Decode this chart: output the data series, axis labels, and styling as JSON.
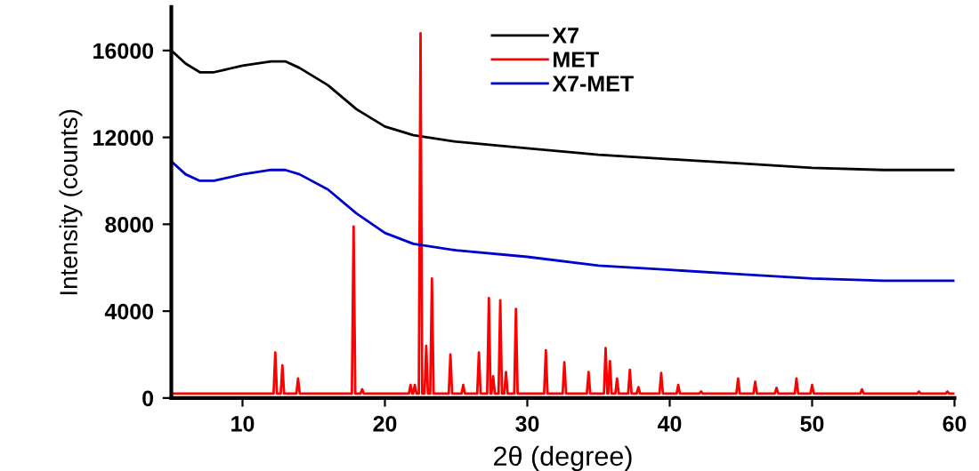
{
  "chart_data": {
    "type": "line",
    "xlabel": "2θ (degree)",
    "ylabel": "Intensity (counts)",
    "xlim": [
      5,
      60
    ],
    "ylim": [
      0,
      18000
    ],
    "xticks": [
      10,
      20,
      30,
      40,
      50,
      60
    ],
    "yticks": [
      0,
      4000,
      8000,
      12000,
      16000
    ],
    "grid": false,
    "legend": "top",
    "marker": "none",
    "line_style": "solid",
    "series": [
      {
        "name": "X7",
        "color": "#000000",
        "x": [
          5,
          6,
          7,
          8,
          10,
          12,
          13,
          14,
          16,
          18,
          20,
          22,
          25,
          30,
          35,
          40,
          45,
          50,
          55,
          60
        ],
        "values": [
          16000,
          15400,
          15000,
          15000,
          15300,
          15500,
          15500,
          15200,
          14400,
          13300,
          12500,
          12100,
          11800,
          11500,
          11200,
          11000,
          10800,
          10600,
          10500,
          10500
        ]
      },
      {
        "name": "MET",
        "color": "#ff0000",
        "x": [
          5,
          12.18,
          12.3,
          12.42,
          12.68,
          12.8,
          12.92,
          13.78,
          13.9,
          14.02,
          17.68,
          17.8,
          17.92,
          18.28,
          18.4,
          18.52,
          21.68,
          21.8,
          21.92,
          21.98,
          22.1,
          22.22,
          22.38,
          22.5,
          22.62,
          22.78,
          22.9,
          23.02,
          23.18,
          23.3,
          23.42,
          24.48,
          24.6,
          24.72,
          25.38,
          25.5,
          25.62,
          26.48,
          26.6,
          26.72,
          27.18,
          27.3,
          27.42,
          27.48,
          27.6,
          27.72,
          27.98,
          28.1,
          28.22,
          28.38,
          28.5,
          28.62,
          29.08,
          29.2,
          29.32,
          31.18,
          31.3,
          31.42,
          32.48,
          32.6,
          32.72,
          34.18,
          34.3,
          34.42,
          35.38,
          35.5,
          35.62,
          35.68,
          35.8,
          35.92,
          36.18,
          36.3,
          36.42,
          37.08,
          37.2,
          37.32,
          37.68,
          37.8,
          37.92,
          39.28,
          39.4,
          39.52,
          40.48,
          40.6,
          40.72,
          42.08,
          42.2,
          42.32,
          44.68,
          44.8,
          44.92,
          45.88,
          46.0,
          46.12,
          47.38,
          47.5,
          47.62,
          48.78,
          48.9,
          49.02,
          49.88,
          50.0,
          50.12,
          53.38,
          53.5,
          53.62,
          57.38,
          57.5,
          57.62,
          59.38,
          59.5,
          59.62,
          60
        ],
        "values": [
          200,
          200,
          2100,
          200,
          200,
          1500,
          200,
          200,
          900,
          200,
          200,
          7900,
          200,
          200,
          400,
          200,
          200,
          600,
          200,
          200,
          600,
          200,
          200,
          16800,
          200,
          200,
          2400,
          200,
          200,
          5500,
          200,
          200,
          2000,
          200,
          200,
          600,
          200,
          200,
          2100,
          200,
          200,
          4600,
          200,
          200,
          1000,
          200,
          200,
          4500,
          200,
          200,
          1200,
          200,
          200,
          4100,
          200,
          200,
          2200,
          200,
          200,
          1650,
          200,
          200,
          1200,
          200,
          200,
          2300,
          200,
          200,
          1700,
          200,
          200,
          900,
          200,
          200,
          1300,
          200,
          200,
          500,
          200,
          200,
          1150,
          200,
          200,
          600,
          200,
          200,
          300,
          200,
          200,
          900,
          200,
          200,
          750,
          200,
          200,
          470,
          200,
          200,
          900,
          200,
          200,
          600,
          200,
          200,
          400,
          200,
          200,
          300,
          200,
          200,
          300,
          200,
          200
        ]
      },
      {
        "name": "X7-MET",
        "color": "#0000cc",
        "x": [
          5,
          6,
          7,
          8,
          10,
          12,
          13,
          14,
          16,
          18,
          20,
          22,
          25,
          30,
          35,
          40,
          45,
          50,
          55,
          60
        ],
        "values": [
          10900,
          10300,
          10000,
          10000,
          10300,
          10500,
          10500,
          10300,
          9600,
          8500,
          7600,
          7100,
          6800,
          6500,
          6100,
          5900,
          5700,
          5500,
          5400,
          5400
        ]
      }
    ]
  }
}
